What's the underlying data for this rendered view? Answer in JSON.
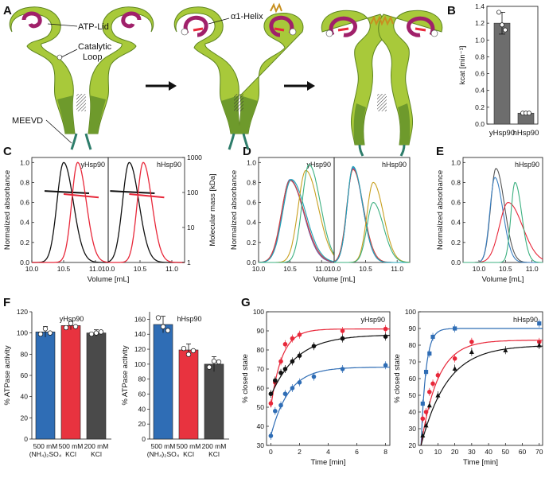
{
  "panel_labels": [
    "A",
    "B",
    "C",
    "D",
    "E",
    "F",
    "G"
  ],
  "panel_a": {
    "labels": [
      "ATP-Lid",
      "Catalytic Loop",
      "MEEVD"
    ],
    "helix_label": "α1-Helix",
    "colors": {
      "protein_light": "#a8c93a",
      "protein_dark": "#6e9a2c",
      "lid": "#a0206a",
      "tail": "#2e7d6b"
    }
  },
  "panel_b": {
    "chart_data": {
      "type": "bar",
      "categories": [
        "yHsp90",
        "hHsp90"
      ],
      "values": [
        1.2,
        0.13
      ],
      "errors": [
        0.13,
        0.015
      ],
      "points": [
        [
          1.33,
          1.18,
          1.12
        ],
        [
          0.13,
          0.13,
          0.13
        ]
      ],
      "ylabel": "kcat [min⁻¹]",
      "ylim": [
        0,
        1.4
      ],
      "yticks": [
        "0.0",
        "0.2",
        "0.4",
        "0.6",
        "0.8",
        "1.0",
        "1.2",
        "1.4"
      ],
      "bar_color": "#6d6d6d"
    }
  },
  "panel_c": {
    "titles": [
      "yHsp90",
      "hHsp90"
    ],
    "xlabel": "Volume [mL]",
    "ylabel": "Normalized absorbance",
    "ylabel_right": "Molecular mass [kDa]",
    "xticks": [
      "10.0",
      "10.5",
      "11.0"
    ],
    "yticks": [
      "0.0",
      "0.2",
      "0.4",
      "0.6",
      "0.8",
      "1.0"
    ],
    "yticks_right": [
      "1",
      "10",
      "100",
      "1000"
    ],
    "chart_data": {
      "type": "line",
      "xlim": [
        10.0,
        11.2
      ],
      "ylim": [
        0,
        1.05
      ],
      "log_right": [
        1,
        1000
      ],
      "series": [
        {
          "color": "#111111",
          "peak": 10.5,
          "width": 0.19,
          "mass": [
            10.2,
            10.9,
            110,
            95
          ]
        },
        {
          "color": "#e8283a",
          "peak": 10.72,
          "width": 0.17,
          "mass": [
            10.5,
            11.05,
            90,
            72
          ]
        }
      ]
    }
  },
  "panel_d": {
    "titles": [
      "yHsp90",
      "hHsp90"
    ],
    "xlabel": "Volume [mL]",
    "ylabel": "Normalized absorbance",
    "xticks": [
      "10.0",
      "10.5",
      "11.0"
    ],
    "yticks": [
      "0.0",
      "0.2",
      "0.4",
      "0.6",
      "0.8",
      "1.0"
    ],
    "chart_data": {
      "type": "line",
      "xlim": [
        10.0,
        11.2
      ],
      "ylim": [
        0,
        1.05
      ],
      "sub1": [
        {
          "color": "#3a7fc1",
          "peak": 10.5,
          "h": 0.83,
          "w": 0.24
        },
        {
          "color": "#7a5aa0",
          "peak": 10.5,
          "h": 0.82,
          "w": 0.24
        },
        {
          "color": "#d04040",
          "peak": 10.5,
          "h": 0.82,
          "w": 0.25
        },
        {
          "color": "#1fa5b8",
          "peak": 10.52,
          "h": 0.83,
          "w": 0.25
        },
        {
          "color": "#c8a020",
          "peak": 10.75,
          "h": 0.92,
          "w": 0.22
        },
        {
          "color": "#3cb080",
          "peak": 10.8,
          "h": 0.98,
          "w": 0.2
        }
      ],
      "sub2": [
        {
          "color": "#3a7fc1",
          "peak": 10.3,
          "h": 0.95,
          "w": 0.17
        },
        {
          "color": "#7a5aa0",
          "peak": 10.3,
          "h": 0.94,
          "w": 0.17
        },
        {
          "color": "#d04040",
          "peak": 10.3,
          "h": 0.93,
          "w": 0.18
        },
        {
          "color": "#1fa5b8",
          "peak": 10.3,
          "h": 0.96,
          "w": 0.17
        },
        {
          "color": "#c8a020",
          "peak": 10.62,
          "h": 0.8,
          "w": 0.18
        },
        {
          "color": "#3cb080",
          "peak": 10.62,
          "h": 0.6,
          "w": 0.18
        }
      ]
    }
  },
  "panel_e": {
    "title": "hHsp90",
    "xlabel": "Volume [mL]",
    "ylabel": "Normalized absorbance",
    "xticks": [
      "10.0",
      "10.5",
      "11.0"
    ],
    "yticks": [
      "0.0",
      "0.2",
      "0.4",
      "0.6",
      "0.8",
      "1.0"
    ],
    "chart_data": {
      "type": "line",
      "xlim": [
        9.7,
        11.2
      ],
      "ylim": [
        0,
        1.05
      ],
      "series": [
        {
          "color": "#555555",
          "peak": 10.32,
          "h": 0.94,
          "w": 0.18
        },
        {
          "color": "#3a7fc1",
          "peak": 10.3,
          "h": 0.85,
          "w": 0.17
        },
        {
          "color": "#e8283a",
          "peak": 10.55,
          "h": 0.6,
          "w": 0.3
        },
        {
          "color": "#3cb080",
          "peak": 10.68,
          "h": 0.8,
          "w": 0.14
        }
      ]
    }
  },
  "panel_f": {
    "ylabel": "% ATPase activity",
    "charts": [
      {
        "title": "yHsp90",
        "type": "bar",
        "categories": [
          "500 mM\n(NH₄)₂SO₄",
          "500 mM\nKCl",
          "200 mM\nKCl"
        ],
        "values": [
          101,
          107,
          100
        ],
        "errors": [
          5,
          4,
          3
        ],
        "points": [
          [
            99,
            104,
            100
          ],
          [
            105,
            109,
            106
          ],
          [
            99,
            100,
            101
          ]
        ],
        "ylim": [
          0,
          120
        ],
        "yticks": [
          "0",
          "20",
          "40",
          "60",
          "80",
          "100",
          "120"
        ],
        "colors": [
          "#2f6db5",
          "#e8333f",
          "#4a4a4a"
        ]
      },
      {
        "title": "hHsp90",
        "type": "bar",
        "categories": [
          "500 mM\n(NH₄)₂SO₄",
          "500 mM\nKCl",
          "200 mM\nKCl"
        ],
        "values": [
          153,
          119,
          100
        ],
        "errors": [
          11,
          8,
          10
        ],
        "points": [
          [
            162,
            150,
            145
          ],
          [
            121,
            113,
            118
          ],
          [
            96,
            104,
            103
          ]
        ],
        "ylim": [
          0,
          170
        ],
        "yticks": [
          "0",
          "20",
          "40",
          "60",
          "80",
          "100",
          "120",
          "140",
          "160"
        ],
        "colors": [
          "#2f6db5",
          "#e8333f",
          "#4a4a4a"
        ]
      }
    ]
  },
  "panel_g": {
    "xlabel": "Time [min]",
    "ylabel": "% closed state",
    "charts": [
      {
        "title": "yHsp90",
        "type": "scatter",
        "xlim": [
          -0.3,
          8.3
        ],
        "ylim": [
          30,
          100
        ],
        "xticks": [
          "0",
          "2",
          "4",
          "6",
          "8"
        ],
        "yticks": [
          "30",
          "40",
          "50",
          "60",
          "70",
          "80",
          "90",
          "100"
        ],
        "series": [
          {
            "color": "#e8283a",
            "marker": "circle",
            "x": [
              0,
              0.3,
              0.7,
              1.0,
              1.5,
              2.0,
              5.0,
              8.0
            ],
            "y": [
              52,
              63,
              74,
              83,
              86,
              88,
              90,
              91
            ],
            "fit": [
              50,
              91,
              1.3
            ]
          },
          {
            "color": "#111111",
            "marker": "circle",
            "x": [
              0,
              0.3,
              0.7,
              1.0,
              1.5,
              2.0,
              3.0,
              5.0,
              8.0
            ],
            "y": [
              57,
              64,
              68,
              70,
              74,
              77,
              82,
              86,
              87
            ],
            "fit": [
              56,
              88,
              0.55
            ]
          },
          {
            "color": "#2f6db5",
            "marker": "circle",
            "x": [
              0,
              0.3,
              0.7,
              1.0,
              1.5,
              2.0,
              3.0,
              5.0,
              8.0
            ],
            "y": [
              35,
              48,
              51,
              57,
              60,
              63,
              66,
              70,
              72
            ],
            "fit": [
              35,
              71,
              0.8
            ]
          }
        ]
      },
      {
        "title": "hHsp90",
        "type": "scatter",
        "xlim": [
          -1.5,
          72
        ],
        "ylim": [
          20,
          100
        ],
        "xticks": [
          "0",
          "10",
          "20",
          "30",
          "40",
          "50",
          "60",
          "70"
        ],
        "yticks": [
          "20",
          "30",
          "40",
          "50",
          "60",
          "70",
          "80",
          "90",
          "100"
        ],
        "series": [
          {
            "color": "#2f6db5",
            "marker": "square",
            "x": [
              1,
              3,
              5,
              7,
              20,
              70
            ],
            "y": [
              45,
              64,
              75,
              85,
              90,
              93
            ],
            "fit": [
              20,
              90,
              0.35
            ]
          },
          {
            "color": "#e8283a",
            "marker": "circle",
            "x": [
              1,
              3,
              5,
              7,
              10,
              20,
              30,
              70
            ],
            "y": [
              36,
              40,
              52,
              57,
              62,
              72,
              82,
              82
            ],
            "fit": [
              20,
              83,
              0.1
            ]
          },
          {
            "color": "#111111",
            "marker": "triangle",
            "x": [
              1,
              3,
              5,
              10,
              20,
              30,
              50,
              70
            ],
            "y": [
              26,
              32,
              44,
              50,
              66,
              76,
              77,
              80
            ],
            "fit": [
              20,
              80,
              0.065
            ]
          }
        ]
      }
    ]
  }
}
